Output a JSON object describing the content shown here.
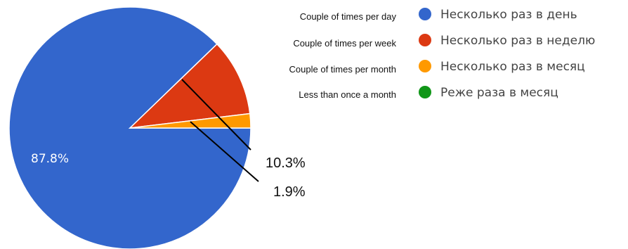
{
  "chart_data": {
    "type": "pie",
    "categories": [
      "Несколько раз в день",
      "Несколько раз в неделю",
      "Несколько раз в месяц",
      "Реже раза в месяц"
    ],
    "translations": [
      "Couple of times per day",
      "Couple of times per week",
      "Couple of times per month",
      "Less than once a month"
    ],
    "values": [
      87.8,
      10.3,
      1.9,
      0
    ],
    "colors": [
      "#3366cc",
      "#dc3912",
      "#ff9900",
      "#109618"
    ],
    "data_labels": {
      "inside": "87.8%",
      "callout_week": "10.3%",
      "callout_month": "1.9%"
    },
    "legend_position": "right"
  }
}
